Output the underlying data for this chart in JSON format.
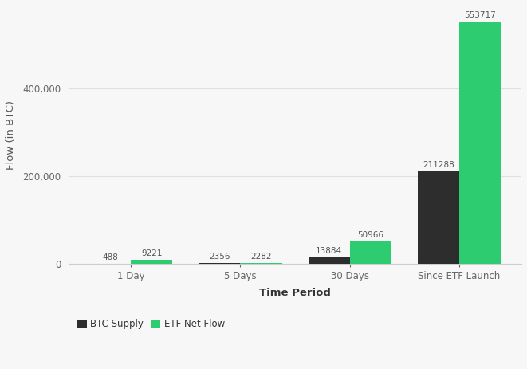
{
  "categories": [
    "1 Day",
    "5 Days",
    "30 Days",
    "Since ETF Launch"
  ],
  "btc_supply": [
    488,
    2356,
    13884,
    211288
  ],
  "etf_net_flow": [
    9221,
    2282,
    50966,
    553717
  ],
  "btc_color": "#2d2d2d",
  "etf_color": "#2ecc71",
  "bar_width": 0.38,
  "xlabel": "Time Period",
  "ylabel": "Flow (in BTC)",
  "ylim": [
    0,
    590000
  ],
  "yticks": [
    0,
    200000,
    400000
  ],
  "background_color": "#f7f7f7",
  "grid_color": "#e0e0e0",
  "legend_labels": [
    "BTC Supply",
    "ETF Net Flow"
  ],
  "label_fontsize": 7.5,
  "axis_label_fontsize": 9.5,
  "tick_fontsize": 8.5
}
